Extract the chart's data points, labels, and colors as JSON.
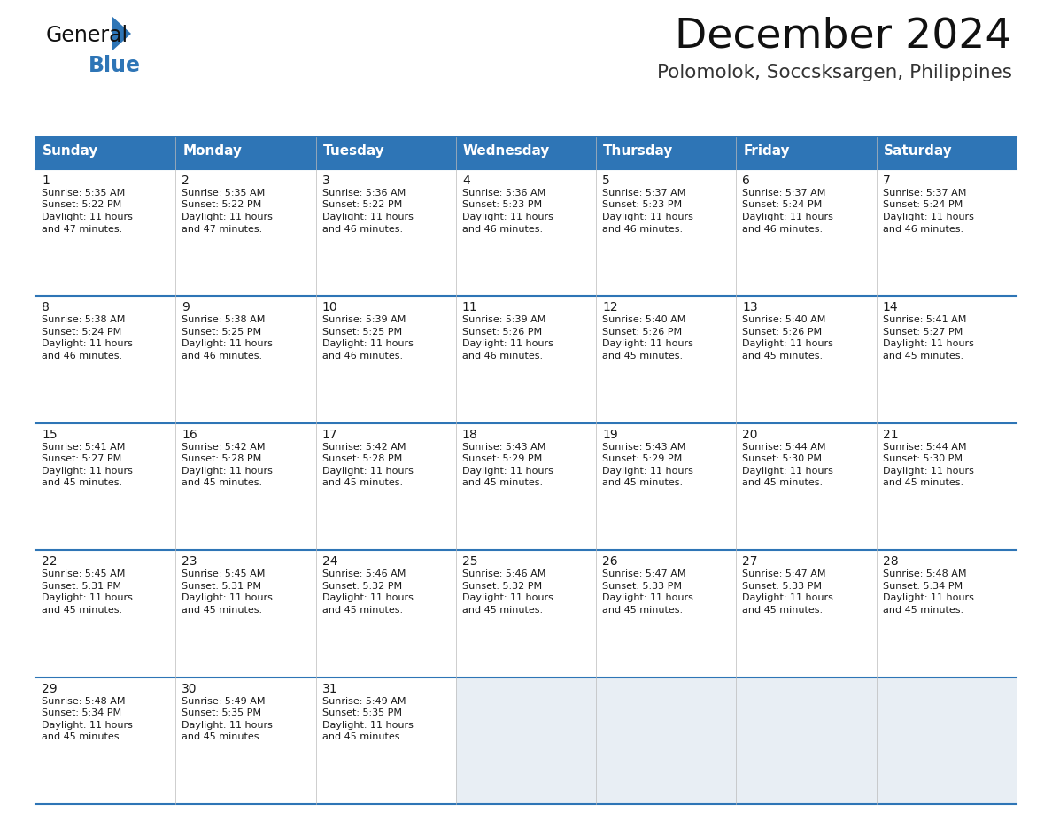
{
  "title": "December 2024",
  "subtitle": "Polomolok, Soccsksargen, Philippines",
  "header_bg_color": "#2E75B6",
  "header_text_color": "#FFFFFF",
  "cell_bg_color_light": "#FFFFFF",
  "cell_bg_color_dark": "#E8EEF4",
  "border_color": "#2E75B6",
  "text_color": "#1a1a1a",
  "days_of_week": [
    "Sunday",
    "Monday",
    "Tuesday",
    "Wednesday",
    "Thursday",
    "Friday",
    "Saturday"
  ],
  "weeks": [
    [
      {
        "day": 1,
        "sunrise": "5:35 AM",
        "sunset": "5:22 PM",
        "daylight_hours": 11,
        "daylight_minutes": 47
      },
      {
        "day": 2,
        "sunrise": "5:35 AM",
        "sunset": "5:22 PM",
        "daylight_hours": 11,
        "daylight_minutes": 47
      },
      {
        "day": 3,
        "sunrise": "5:36 AM",
        "sunset": "5:22 PM",
        "daylight_hours": 11,
        "daylight_minutes": 46
      },
      {
        "day": 4,
        "sunrise": "5:36 AM",
        "sunset": "5:23 PM",
        "daylight_hours": 11,
        "daylight_minutes": 46
      },
      {
        "day": 5,
        "sunrise": "5:37 AM",
        "sunset": "5:23 PM",
        "daylight_hours": 11,
        "daylight_minutes": 46
      },
      {
        "day": 6,
        "sunrise": "5:37 AM",
        "sunset": "5:24 PM",
        "daylight_hours": 11,
        "daylight_minutes": 46
      },
      {
        "day": 7,
        "sunrise": "5:37 AM",
        "sunset": "5:24 PM",
        "daylight_hours": 11,
        "daylight_minutes": 46
      }
    ],
    [
      {
        "day": 8,
        "sunrise": "5:38 AM",
        "sunset": "5:24 PM",
        "daylight_hours": 11,
        "daylight_minutes": 46
      },
      {
        "day": 9,
        "sunrise": "5:38 AM",
        "sunset": "5:25 PM",
        "daylight_hours": 11,
        "daylight_minutes": 46
      },
      {
        "day": 10,
        "sunrise": "5:39 AM",
        "sunset": "5:25 PM",
        "daylight_hours": 11,
        "daylight_minutes": 46
      },
      {
        "day": 11,
        "sunrise": "5:39 AM",
        "sunset": "5:26 PM",
        "daylight_hours": 11,
        "daylight_minutes": 46
      },
      {
        "day": 12,
        "sunrise": "5:40 AM",
        "sunset": "5:26 PM",
        "daylight_hours": 11,
        "daylight_minutes": 45
      },
      {
        "day": 13,
        "sunrise": "5:40 AM",
        "sunset": "5:26 PM",
        "daylight_hours": 11,
        "daylight_minutes": 45
      },
      {
        "day": 14,
        "sunrise": "5:41 AM",
        "sunset": "5:27 PM",
        "daylight_hours": 11,
        "daylight_minutes": 45
      }
    ],
    [
      {
        "day": 15,
        "sunrise": "5:41 AM",
        "sunset": "5:27 PM",
        "daylight_hours": 11,
        "daylight_minutes": 45
      },
      {
        "day": 16,
        "sunrise": "5:42 AM",
        "sunset": "5:28 PM",
        "daylight_hours": 11,
        "daylight_minutes": 45
      },
      {
        "day": 17,
        "sunrise": "5:42 AM",
        "sunset": "5:28 PM",
        "daylight_hours": 11,
        "daylight_minutes": 45
      },
      {
        "day": 18,
        "sunrise": "5:43 AM",
        "sunset": "5:29 PM",
        "daylight_hours": 11,
        "daylight_minutes": 45
      },
      {
        "day": 19,
        "sunrise": "5:43 AM",
        "sunset": "5:29 PM",
        "daylight_hours": 11,
        "daylight_minutes": 45
      },
      {
        "day": 20,
        "sunrise": "5:44 AM",
        "sunset": "5:30 PM",
        "daylight_hours": 11,
        "daylight_minutes": 45
      },
      {
        "day": 21,
        "sunrise": "5:44 AM",
        "sunset": "5:30 PM",
        "daylight_hours": 11,
        "daylight_minutes": 45
      }
    ],
    [
      {
        "day": 22,
        "sunrise": "5:45 AM",
        "sunset": "5:31 PM",
        "daylight_hours": 11,
        "daylight_minutes": 45
      },
      {
        "day": 23,
        "sunrise": "5:45 AM",
        "sunset": "5:31 PM",
        "daylight_hours": 11,
        "daylight_minutes": 45
      },
      {
        "day": 24,
        "sunrise": "5:46 AM",
        "sunset": "5:32 PM",
        "daylight_hours": 11,
        "daylight_minutes": 45
      },
      {
        "day": 25,
        "sunrise": "5:46 AM",
        "sunset": "5:32 PM",
        "daylight_hours": 11,
        "daylight_minutes": 45
      },
      {
        "day": 26,
        "sunrise": "5:47 AM",
        "sunset": "5:33 PM",
        "daylight_hours": 11,
        "daylight_minutes": 45
      },
      {
        "day": 27,
        "sunrise": "5:47 AM",
        "sunset": "5:33 PM",
        "daylight_hours": 11,
        "daylight_minutes": 45
      },
      {
        "day": 28,
        "sunrise": "5:48 AM",
        "sunset": "5:34 PM",
        "daylight_hours": 11,
        "daylight_minutes": 45
      }
    ],
    [
      {
        "day": 29,
        "sunrise": "5:48 AM",
        "sunset": "5:34 PM",
        "daylight_hours": 11,
        "daylight_minutes": 45
      },
      {
        "day": 30,
        "sunrise": "5:49 AM",
        "sunset": "5:35 PM",
        "daylight_hours": 11,
        "daylight_minutes": 45
      },
      {
        "day": 31,
        "sunrise": "5:49 AM",
        "sunset": "5:35 PM",
        "daylight_hours": 11,
        "daylight_minutes": 45
      },
      null,
      null,
      null,
      null
    ]
  ],
  "logo_text_general": "General",
  "logo_text_blue": "Blue",
  "logo_triangle_color": "#2E75B6"
}
